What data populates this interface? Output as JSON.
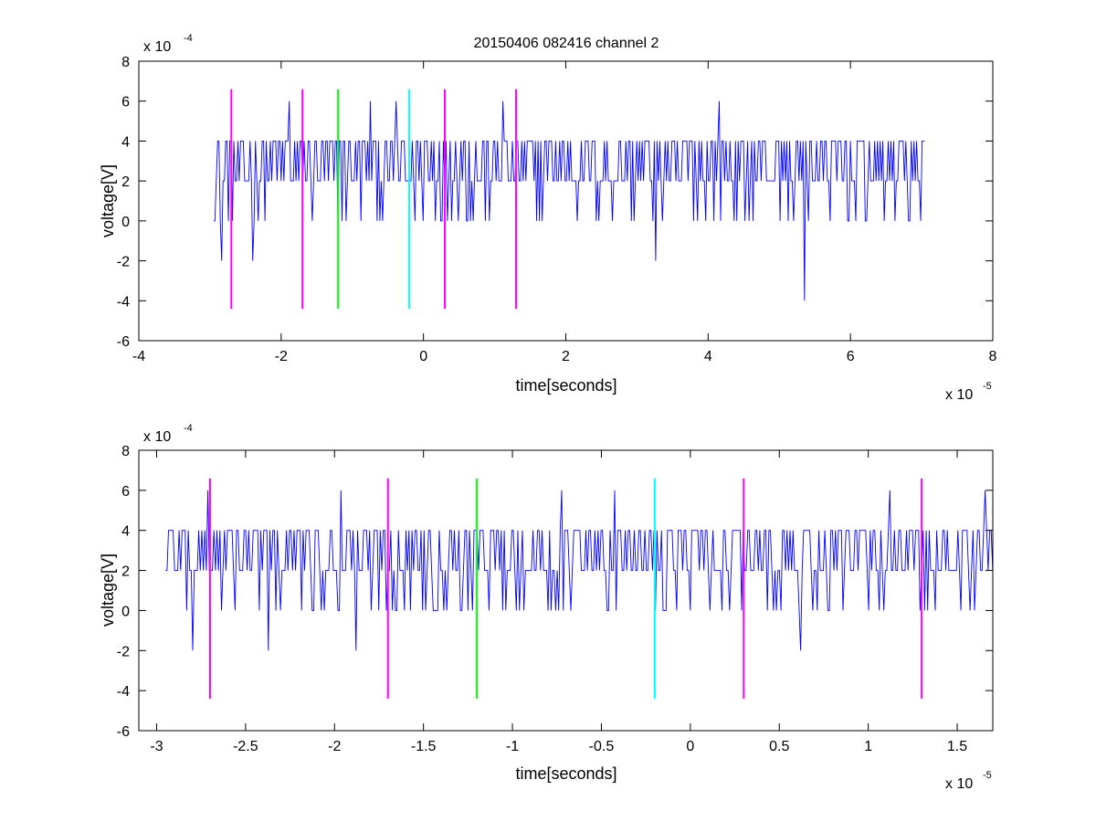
{
  "chart_data": [
    {
      "type": "line",
      "title": "20150406 082416 channel 2",
      "xlabel": "time[seconds]",
      "ylabel": "voltage[V]",
      "x_multiplier": "x 10",
      "x_exponent": "-5",
      "y_multiplier": "x 10",
      "y_exponent": "-4",
      "xlim": [
        -4,
        8
      ],
      "ylim": [
        -6,
        8
      ],
      "xticks": [
        -4,
        -2,
        0,
        2,
        4,
        6,
        8
      ],
      "yticks": [
        -6,
        -4,
        -2,
        0,
        2,
        4,
        6,
        8
      ],
      "xtick_labels": [
        "-4",
        "-2",
        "0",
        "2",
        "4",
        "6",
        "8"
      ],
      "ytick_labels": [
        "-6",
        "-4",
        "-2",
        "0",
        "2",
        "4",
        "6",
        "8"
      ],
      "grid": false,
      "signal": {
        "color": "#0000ff",
        "x_range": [
          -2.95,
          7.05
        ],
        "levels": [
          -4,
          -2,
          0,
          2,
          4,
          6
        ],
        "note_points": [
          {
            "x": -2.85,
            "y": -2
          },
          {
            "x": -2.4,
            "y": -2
          },
          {
            "x": -1.9,
            "y": 6
          },
          {
            "x": -0.75,
            "y": 6
          },
          {
            "x": -0.4,
            "y": 6
          },
          {
            "x": 1.1,
            "y": 6
          },
          {
            "x": 3.25,
            "y": -2
          },
          {
            "x": 4.15,
            "y": 6
          },
          {
            "x": 5.35,
            "y": -4
          }
        ]
      },
      "markers": [
        {
          "x": -2.7,
          "color": "#ff00ff",
          "y_range": [
            -4.4,
            6.6
          ]
        },
        {
          "x": -1.7,
          "color": "#ff00ff",
          "y_range": [
            -4.4,
            6.6
          ]
        },
        {
          "x": -1.2,
          "color": "#00ff00",
          "y_range": [
            -4.4,
            6.6
          ]
        },
        {
          "x": -0.2,
          "color": "#00ffff",
          "y_range": [
            -4.4,
            6.6
          ]
        },
        {
          "x": 0.3,
          "color": "#ff00ff",
          "y_range": [
            -4.4,
            6.6
          ]
        },
        {
          "x": 1.3,
          "color": "#ff00ff",
          "y_range": [
            -4.4,
            6.6
          ]
        }
      ]
    },
    {
      "type": "line",
      "title": "",
      "xlabel": "time[seconds]",
      "ylabel": "voltage[V]",
      "x_multiplier": "x 10",
      "x_exponent": "-5",
      "y_multiplier": "x 10",
      "y_exponent": "-4",
      "xlim": [
        -3.1,
        1.7
      ],
      "ylim": [
        -6,
        8
      ],
      "xticks": [
        -3,
        -2.5,
        -2,
        -1.5,
        -1,
        -0.5,
        0,
        0.5,
        1,
        1.5
      ],
      "yticks": [
        -6,
        -4,
        -2,
        0,
        2,
        4,
        6,
        8
      ],
      "xtick_labels": [
        "-3",
        "-2.5",
        "-2",
        "-1.5",
        "-1",
        "-0.5",
        "0",
        "0.5",
        "1",
        "1.5"
      ],
      "ytick_labels": [
        "-6",
        "-4",
        "-2",
        "0",
        "2",
        "4",
        "6",
        "8"
      ],
      "grid": false,
      "signal": {
        "color": "#0000ff",
        "x_range": [
          -2.95,
          1.7
        ],
        "levels": [
          -2,
          0,
          2,
          4,
          6
        ],
        "note_points": [
          {
            "x": -2.8,
            "y": -2
          },
          {
            "x": -2.72,
            "y": 6
          },
          {
            "x": -2.38,
            "y": -2
          },
          {
            "x": -1.97,
            "y": 6
          },
          {
            "x": -1.88,
            "y": -2
          },
          {
            "x": -0.73,
            "y": 6
          },
          {
            "x": -0.43,
            "y": 6
          },
          {
            "x": 0.62,
            "y": -2
          },
          {
            "x": 1.12,
            "y": 6
          },
          {
            "x": 1.65,
            "y": 6
          }
        ]
      },
      "markers": [
        {
          "x": -2.7,
          "color": "#ff00ff",
          "y_range": [
            -4.4,
            6.6
          ]
        },
        {
          "x": -1.7,
          "color": "#ff00ff",
          "y_range": [
            -4.4,
            6.6
          ]
        },
        {
          "x": -1.2,
          "color": "#00ff00",
          "y_range": [
            -4.4,
            6.6
          ]
        },
        {
          "x": -0.2,
          "color": "#00ffff",
          "y_range": [
            -4.4,
            6.6
          ]
        },
        {
          "x": 0.3,
          "color": "#ff00ff",
          "y_range": [
            -4.4,
            6.6
          ]
        },
        {
          "x": 1.3,
          "color": "#ff00ff",
          "y_range": [
            -4.4,
            6.6
          ]
        }
      ]
    }
  ]
}
